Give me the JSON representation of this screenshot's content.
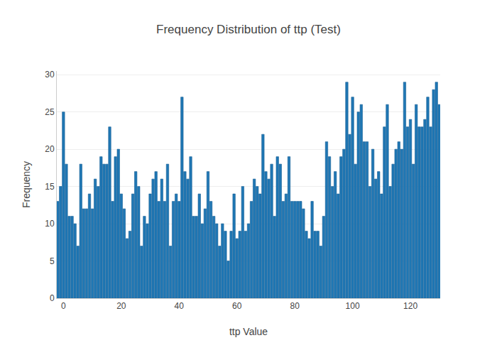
{
  "chart_data": {
    "type": "bar",
    "title": "Frequency Distribution of ttp (Test)",
    "x_label": "ttp Value",
    "y_label": "Frequency",
    "x": [
      -2,
      -1,
      0,
      1,
      2,
      3,
      4,
      5,
      6,
      7,
      8,
      9,
      10,
      11,
      12,
      13,
      14,
      15,
      16,
      17,
      18,
      19,
      20,
      21,
      22,
      23,
      24,
      25,
      26,
      27,
      28,
      29,
      30,
      31,
      32,
      33,
      34,
      35,
      36,
      37,
      38,
      39,
      40,
      41,
      42,
      43,
      44,
      45,
      46,
      47,
      48,
      49,
      50,
      51,
      52,
      53,
      54,
      55,
      56,
      57,
      58,
      59,
      60,
      61,
      62,
      63,
      64,
      65,
      66,
      67,
      68,
      69,
      70,
      71,
      72,
      73,
      74,
      75,
      76,
      77,
      78,
      79,
      80,
      81,
      82,
      83,
      84,
      85,
      86,
      87,
      88,
      89,
      90,
      91,
      92,
      93,
      94,
      95,
      96,
      97,
      98,
      99,
      100,
      101,
      102,
      103,
      104,
      105,
      106,
      107,
      108,
      109,
      110,
      111,
      112,
      113,
      114,
      115,
      116,
      117,
      118,
      119,
      120,
      121,
      122,
      123,
      124,
      125,
      126,
      127,
      128,
      129,
      130
    ],
    "values": [
      13,
      15,
      25,
      18,
      11,
      11,
      10,
      7,
      18,
      12,
      12,
      14,
      12,
      16,
      15,
      19,
      18,
      18,
      23,
      13,
      19,
      20,
      14,
      12,
      8,
      9,
      14,
      17,
      15,
      7,
      11,
      10,
      14,
      16,
      17,
      13,
      16,
      13,
      18,
      7,
      13,
      14,
      13,
      27,
      17,
      16,
      19,
      11,
      11,
      14,
      10,
      12,
      17,
      13,
      11,
      10,
      7,
      10,
      9,
      5,
      9,
      14,
      8,
      9,
      15,
      9,
      10,
      13,
      16,
      15,
      14,
      22,
      17,
      16,
      18,
      11,
      19,
      18,
      13,
      14,
      19,
      13,
      13,
      13,
      13,
      12,
      9,
      8,
      13,
      9,
      9,
      7,
      11,
      21,
      19,
      15,
      17,
      14,
      19,
      20,
      29,
      22,
      27,
      18,
      25,
      26,
      21,
      21,
      15,
      20,
      16,
      17,
      14,
      23,
      26,
      15,
      18,
      20,
      21,
      20,
      29,
      23,
      24,
      18,
      26,
      23,
      23,
      24,
      27,
      23,
      28,
      29,
      26
    ],
    "color": "#1f77b4",
    "xlim": [
      -2.3,
      130.3
    ],
    "xticks": [
      0,
      20,
      40,
      60,
      80,
      100,
      120
    ],
    "ylim": [
      0,
      30.5
    ],
    "yticks": [
      0,
      5,
      10,
      15,
      20,
      25,
      30
    ],
    "grid": true
  }
}
